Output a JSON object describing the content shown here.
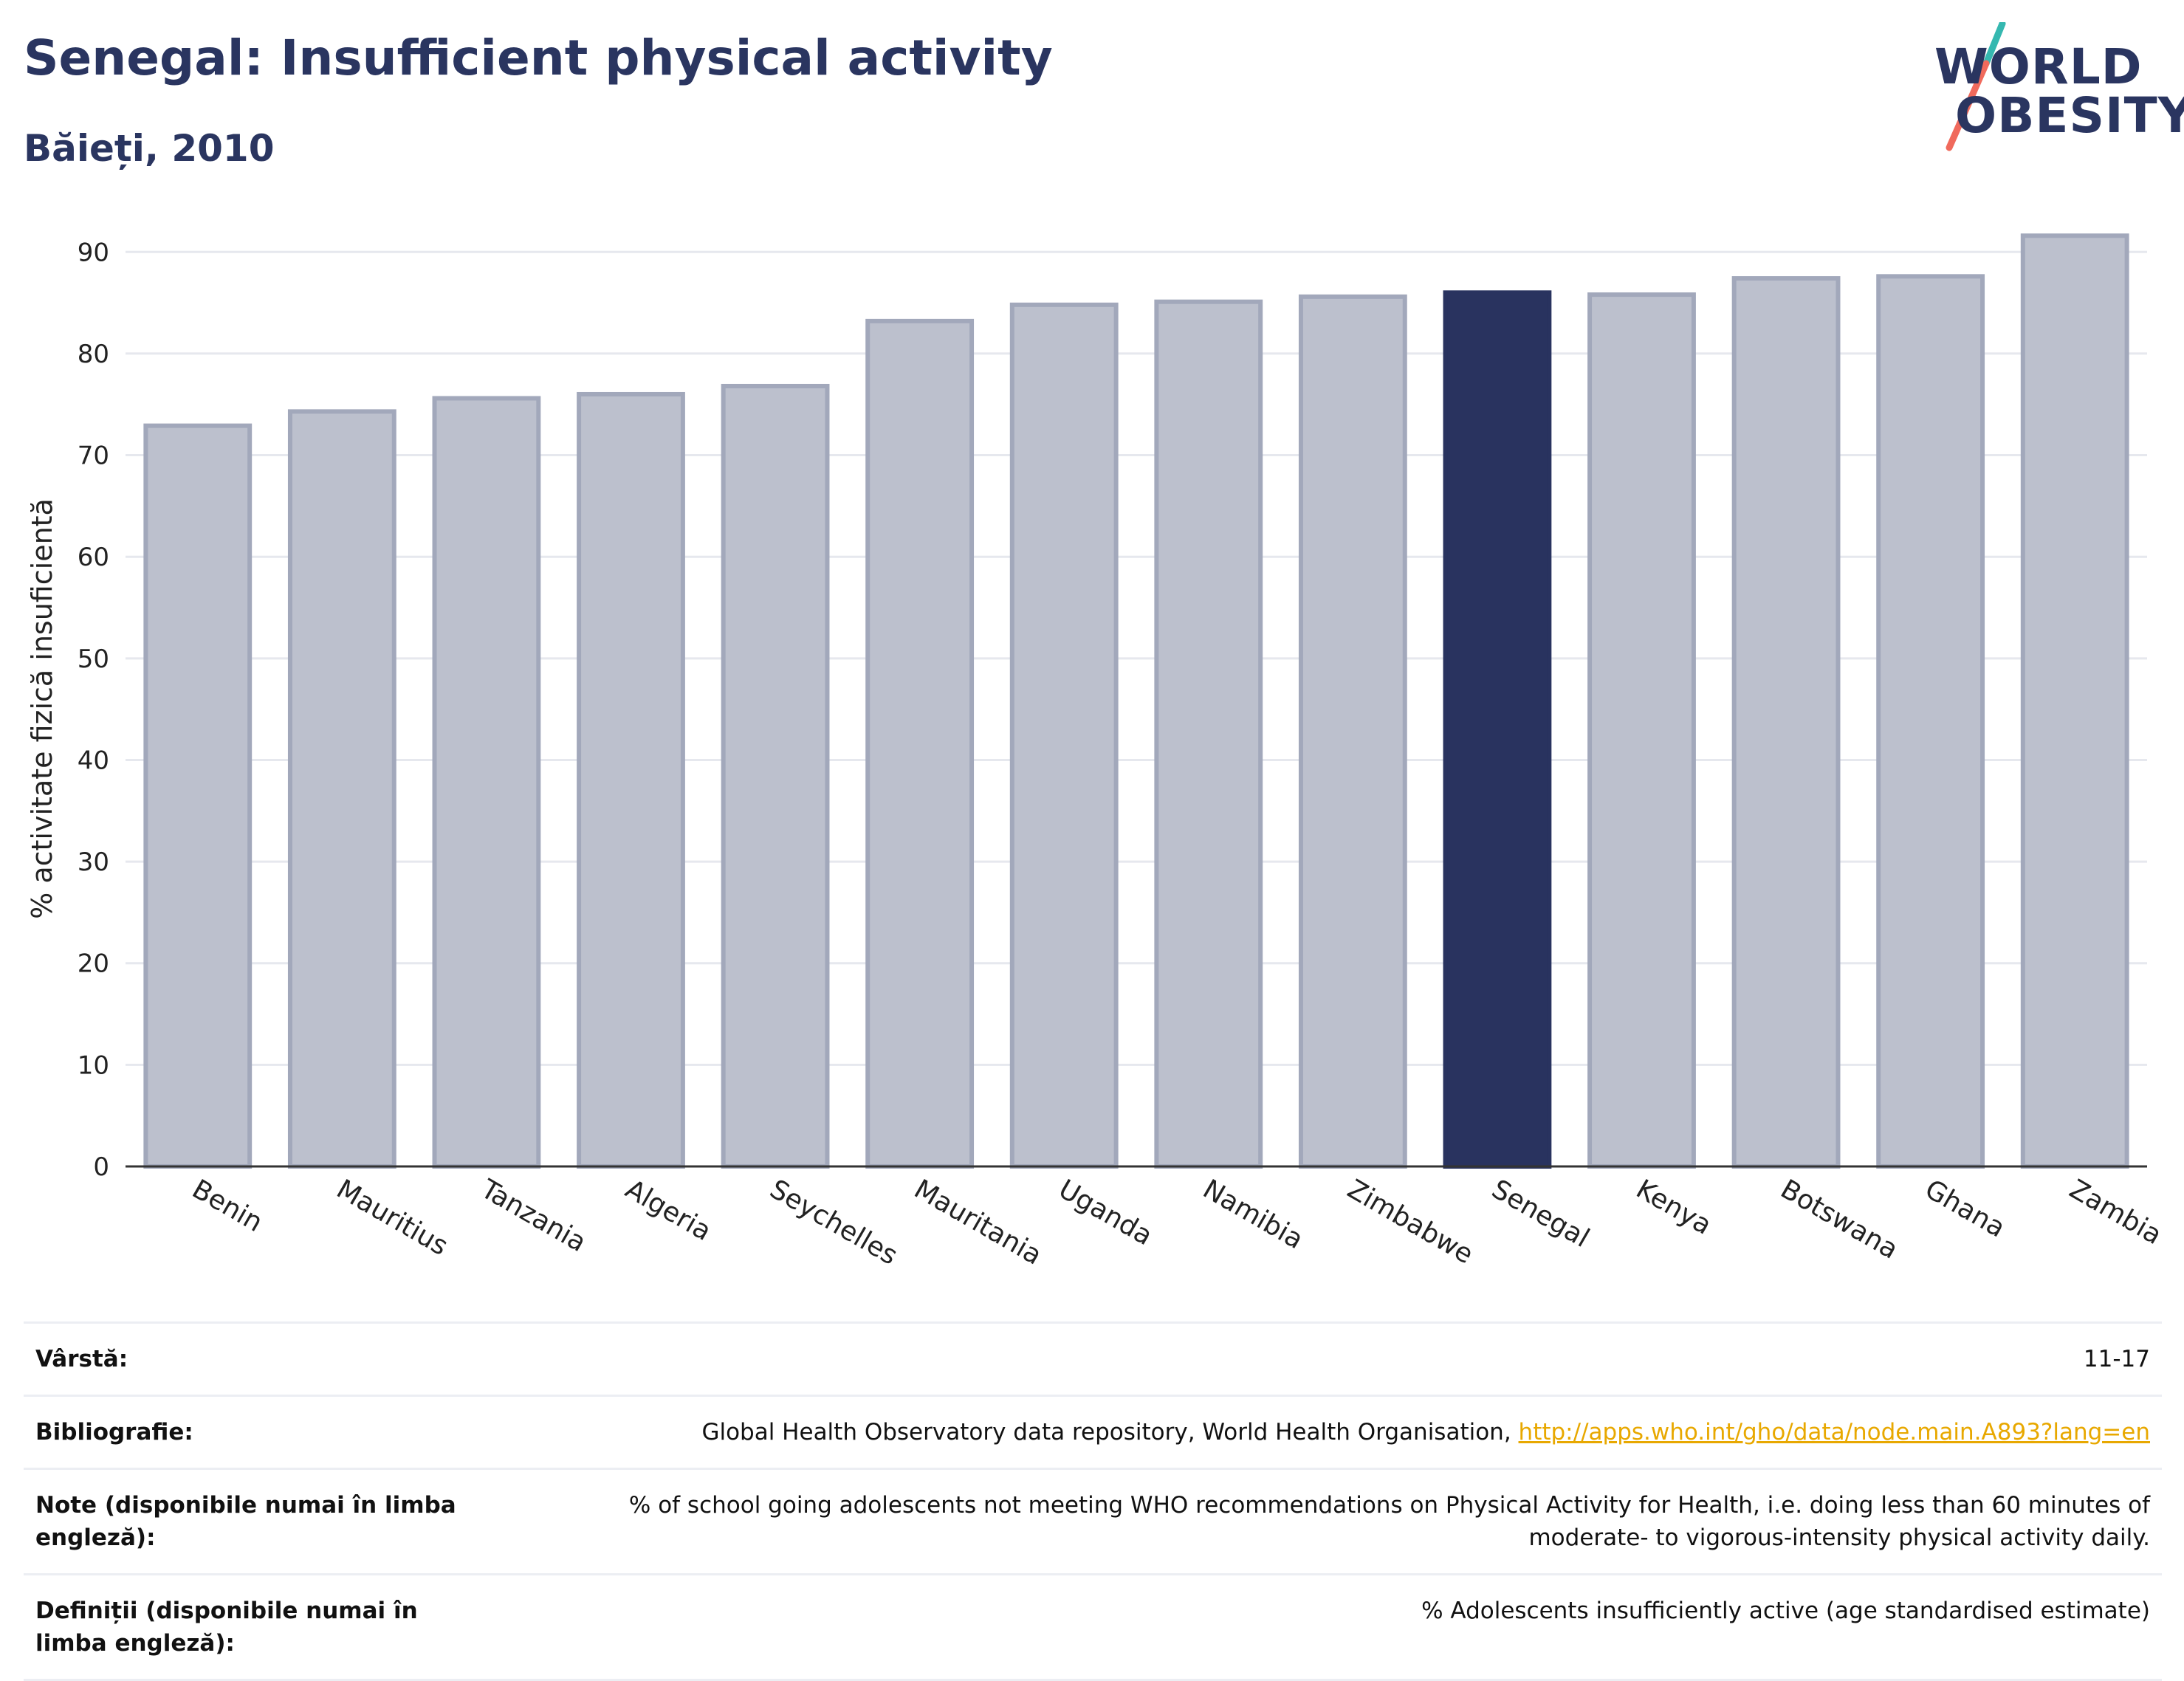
{
  "header": {
    "title": "Senegal: Insufficient physical activity",
    "subtitle": "Băieți, 2010"
  },
  "logo": {
    "line1": "WORLD",
    "line2": "OBESITY"
  },
  "colors": {
    "highlight": "#29335f",
    "bar_fill": "#bcc0cd",
    "bar_stroke": "#a2a8bb",
    "grid": "#e6e8ee",
    "logo_text": "#2a3560",
    "logo_slash_top": "#35b8b0",
    "logo_slash_bottom": "#f06a5c"
  },
  "chart_data": {
    "type": "bar",
    "ylabel": "% activitate fizică insuficientă",
    "xlabel": "",
    "ylim": [
      0,
      93
    ],
    "yticks": [
      0,
      10,
      20,
      30,
      40,
      50,
      60,
      70,
      80,
      90
    ],
    "grid": true,
    "highlight": "Senegal",
    "categories": [
      "Benin",
      "Mauritius",
      "Tanzania",
      "Algeria",
      "Seychelles",
      "Mauritania",
      "Uganda",
      "Namibia",
      "Zimbabwe",
      "Senegal",
      "Kenya",
      "Botswana",
      "Ghana",
      "Zambia"
    ],
    "values": [
      72.9,
      74.3,
      75.6,
      76.0,
      76.8,
      83.2,
      84.8,
      85.1,
      85.6,
      86.0,
      85.8,
      87.4,
      87.6,
      91.6
    ]
  },
  "info_table": [
    {
      "label": "Vârstă:",
      "value": "11-17"
    },
    {
      "label": "Bibliografie:",
      "value": "Global Health Observatory data repository, World Health Organisation, ",
      "link": "http://apps.who.int/gho/data/node.main.A893?lang=en"
    },
    {
      "label": "Note (disponibile numai în limba engleză):",
      "value": "% of school going adolescents not meeting WHO recommendations on Physical Activity for Health, i.e. doing less than 60 minutes of moderate- to vigorous-intensity physical activity daily."
    },
    {
      "label": "Definiții (disponibile numai în limba engleză):",
      "value": "% Adolescents insufficiently active (age standardised estimate)"
    }
  ]
}
